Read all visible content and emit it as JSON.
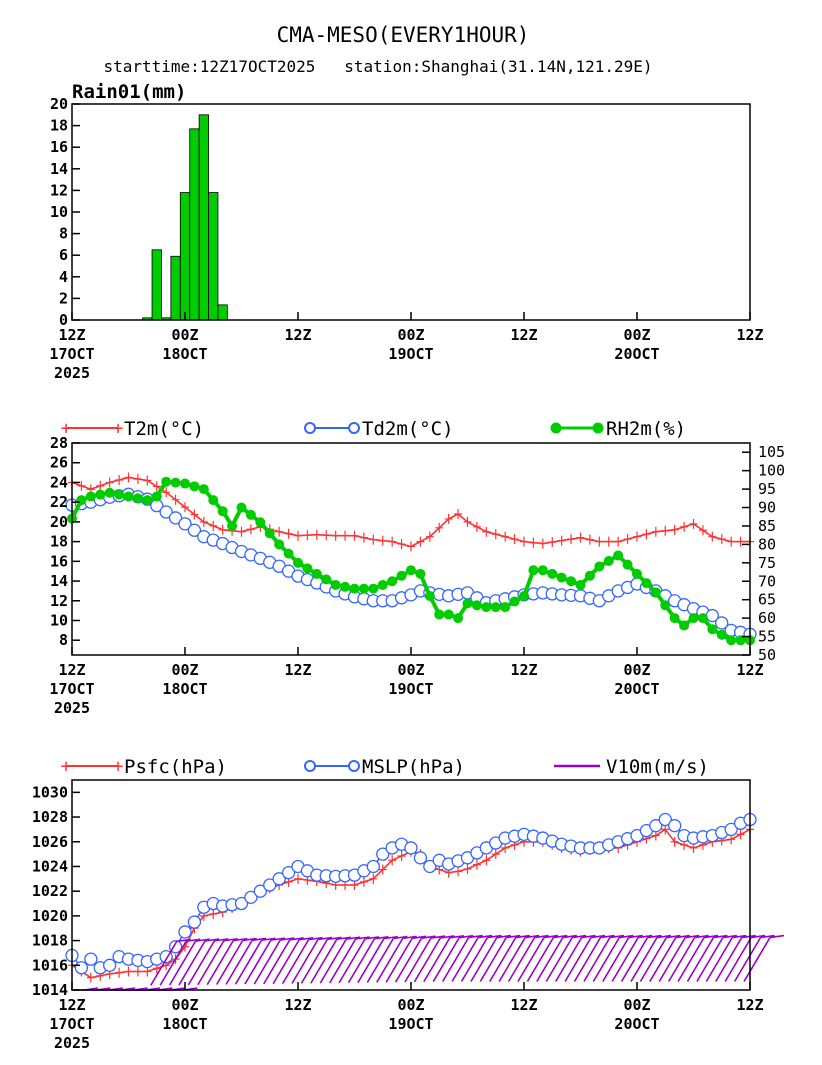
{
  "header": {
    "title": "CMA-MESO(EVERY1HOUR)",
    "subtitle": "starttime:12Z17OCT2025   station:Shanghai(31.14N,121.29E)"
  },
  "x_axis": {
    "range_hours": [
      0,
      72
    ],
    "ticks": [
      {
        "h": 0,
        "line1": "12Z",
        "line2": "17OCT",
        "line3": "2025"
      },
      {
        "h": 12,
        "line1": "00Z",
        "line2": "18OCT",
        "line3": ""
      },
      {
        "h": 24,
        "line1": "12Z",
        "line2": "",
        "line3": ""
      },
      {
        "h": 36,
        "line1": "00Z",
        "line2": "19OCT",
        "line3": ""
      },
      {
        "h": 48,
        "line1": "12Z",
        "line2": "",
        "line3": ""
      },
      {
        "h": 60,
        "line1": "00Z",
        "line2": "20OCT",
        "line3": ""
      },
      {
        "h": 72,
        "line1": "12Z",
        "line2": "",
        "line3": ""
      }
    ]
  },
  "panels": {
    "rain": {
      "ylabel": "Rain01(mm)"
    },
    "temp": {
      "legend": [
        "T2m(°C)",
        "Td2m(°C)",
        "RH2m(%)"
      ]
    },
    "pres": {
      "legend": [
        "Psfc(hPa)",
        "MSLP(hPa)",
        "V10m(m/s)"
      ]
    }
  },
  "colors": {
    "rain": "#00cc00",
    "t2m": "#ff3333",
    "td2m": "#3366ff",
    "rh": "#00cc00",
    "psfc": "#ff3333",
    "mslp": "#3366ff",
    "wind": "#9900cc"
  },
  "chart_data": [
    {
      "type": "bar",
      "ylabel": "Rain01(mm)",
      "ylim": [
        0,
        20
      ],
      "yticks": [
        0,
        2,
        4,
        6,
        8,
        10,
        12,
        14,
        16,
        18,
        20
      ],
      "x": [
        8,
        9,
        10,
        11,
        12,
        13,
        14,
        15,
        16
      ],
      "values": [
        0.2,
        6.5,
        0.2,
        5.9,
        11.8,
        17.7,
        19.0,
        11.8,
        1.4
      ]
    },
    {
      "type": "line",
      "ylim": [
        6.5,
        28
      ],
      "yticks": [
        8,
        10,
        12,
        14,
        16,
        18,
        20,
        22,
        24,
        26,
        28
      ],
      "y2lim": [
        50,
        107.5
      ],
      "y2ticks": [
        50,
        55,
        60,
        65,
        70,
        75,
        80,
        85,
        90,
        95,
        100,
        105
      ],
      "series": [
        {
          "name": "T2m(°C)",
          "axis": "left",
          "x": [
            0,
            2,
            4,
            6,
            8,
            10,
            12,
            14,
            16,
            18,
            20,
            22,
            24,
            26,
            28,
            30,
            32,
            34,
            36,
            38,
            40,
            41,
            42,
            44,
            46,
            48,
            50,
            52,
            54,
            56,
            58,
            60,
            62,
            64,
            66,
            68,
            70,
            72
          ],
          "values": [
            24,
            23.3,
            24,
            24.5,
            24.2,
            23,
            21.5,
            20,
            19.2,
            19,
            19.5,
            19,
            18.6,
            18.7,
            18.6,
            18.6,
            18.2,
            18,
            17.5,
            18.5,
            20.3,
            20.8,
            20,
            19,
            18.5,
            18,
            17.8,
            18.1,
            18.4,
            18,
            18,
            18.5,
            19,
            19.2,
            19.8,
            18.5,
            18,
            18
          ]
        },
        {
          "name": "Td2m(°C)",
          "axis": "left",
          "x": [
            0,
            2,
            4,
            6,
            8,
            10,
            12,
            14,
            16,
            18,
            20,
            22,
            24,
            26,
            28,
            30,
            32,
            34,
            36,
            37,
            38,
            40,
            42,
            44,
            46,
            48,
            50,
            52,
            54,
            56,
            58,
            60,
            62,
            64,
            66,
            68,
            70,
            72
          ],
          "values": [
            21.7,
            22,
            22.5,
            22.8,
            22.3,
            21,
            19.8,
            18.5,
            17.8,
            17,
            16.3,
            15.5,
            14.5,
            13.8,
            13,
            12.4,
            12,
            12,
            12.6,
            13,
            12.8,
            12.5,
            12.8,
            11.8,
            12.2,
            12.6,
            12.8,
            12.6,
            12.5,
            12,
            13,
            13.7,
            13,
            12,
            11.2,
            10.5,
            9,
            8.6
          ]
        },
        {
          "name": "RH2m(%)",
          "axis": "right",
          "x": [
            0,
            1,
            2,
            4,
            6,
            8,
            9,
            10,
            12,
            14,
            16,
            17,
            18,
            20,
            22,
            24,
            26,
            28,
            30,
            32,
            34,
            36,
            37,
            38,
            39,
            40,
            41,
            42,
            44,
            46,
            48,
            49,
            50,
            52,
            54,
            56,
            58,
            60,
            62,
            64,
            65,
            66,
            67,
            68,
            70,
            72
          ],
          "values": [
            87,
            92,
            93,
            94,
            93,
            92,
            93,
            97,
            96.5,
            95,
            89,
            85,
            90,
            86,
            80,
            75,
            72,
            69,
            68,
            68,
            70,
            73,
            72,
            66,
            61,
            61,
            60,
            64,
            63,
            63,
            66,
            73,
            73,
            71,
            69,
            74,
            77,
            72,
            67,
            60,
            58,
            60,
            60,
            57,
            54,
            54
          ]
        },
        {
          "name": "Psfc(hPa)",
          "axis": "left",
          "panel": 3,
          "x": [
            0,
            2,
            4,
            6,
            8,
            10,
            11,
            12,
            13,
            14,
            16,
            18,
            20,
            22,
            24,
            26,
            28,
            30,
            32,
            34,
            36,
            37,
            38,
            40,
            41,
            42,
            44,
            46,
            48,
            50,
            52,
            54,
            56,
            58,
            60,
            62,
            63,
            64,
            66,
            68,
            70,
            72
          ],
          "values": [
            1016,
            1015,
            1015.3,
            1015.5,
            1015.5,
            1016,
            1016.5,
            1017.5,
            1019,
            1020,
            1020.3,
            1021,
            1022,
            1022.5,
            1023,
            1022.8,
            1022.5,
            1022.5,
            1023,
            1024.5,
            1025.2,
            1025,
            1024,
            1023.5,
            1023.6,
            1023.8,
            1024.5,
            1025.5,
            1026,
            1026,
            1025.5,
            1025.2,
            1025.5,
            1025.5,
            1026,
            1026.5,
            1027,
            1026,
            1025.5,
            1026,
            1026.2,
            1027
          ]
        },
        {
          "name": "MSLP(hPa)",
          "axis": "left",
          "panel": 3,
          "x": [
            0,
            1,
            2,
            3,
            4,
            5,
            6,
            8,
            10,
            11,
            12,
            13,
            14,
            15,
            16,
            18,
            20,
            22,
            24,
            26,
            28,
            30,
            32,
            33,
            34,
            35,
            36,
            37,
            38,
            39,
            40,
            42,
            44,
            46,
            48,
            50,
            52,
            54,
            56,
            58,
            60,
            62,
            63,
            64,
            65,
            66,
            68,
            70,
            71,
            72
          ],
          "values": [
            1016.8,
            1015.8,
            1016.5,
            1015.8,
            1016,
            1016.7,
            1016.5,
            1016.3,
            1016.7,
            1017.5,
            1018.7,
            1019.5,
            1020.7,
            1021,
            1020.8,
            1021,
            1022,
            1023,
            1024,
            1023.3,
            1023.2,
            1023.3,
            1024,
            1025,
            1025.5,
            1025.8,
            1025.5,
            1024.7,
            1024,
            1024.5,
            1024.2,
            1024.7,
            1025.5,
            1026.3,
            1026.6,
            1026.3,
            1025.8,
            1025.5,
            1025.5,
            1026,
            1026.5,
            1027.3,
            1027.8,
            1027.3,
            1026.5,
            1026.3,
            1026.5,
            1027,
            1027.5,
            1027.8
          ]
        }
      ]
    },
    {
      "type": "line",
      "ylim": [
        1014,
        1031
      ],
      "yticks": [
        1014,
        1016,
        1018,
        1020,
        1022,
        1024,
        1026,
        1028,
        1030
      ],
      "wind_barbs": {
        "name": "V10m(m/s)",
        "x_range": [
          0,
          72
        ],
        "step_hours": 1
      }
    }
  ]
}
